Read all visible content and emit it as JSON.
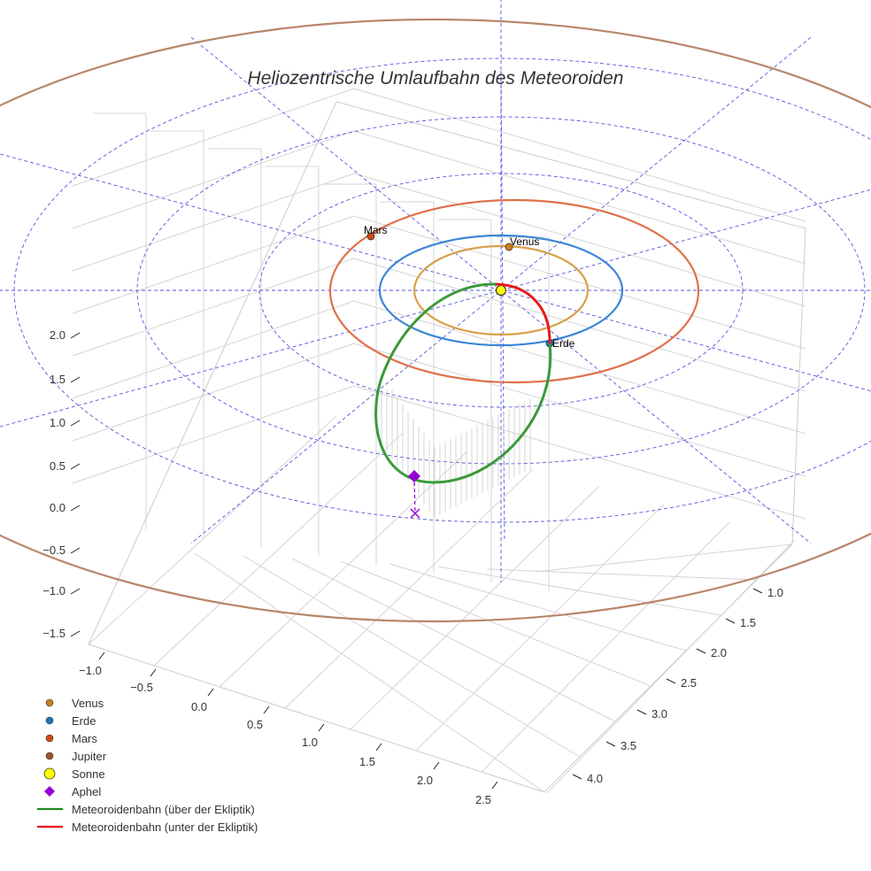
{
  "chart_data": {
    "type": "line3d",
    "title": "Heliozentrische Umlaufbahn des Meteoroiden",
    "x_ticks": [
      "−1.0",
      "−0.5",
      "0.0",
      "0.5",
      "1.0",
      "1.5",
      "2.0",
      "2.5"
    ],
    "y_ticks": [
      "1.0",
      "1.5",
      "2.0",
      "2.5",
      "3.0",
      "3.5",
      "4.0"
    ],
    "z_ticks": [
      "2.0",
      "1.5",
      "1.0",
      "0.5",
      "0.0",
      "−0.5",
      "−1.0",
      "−1.5"
    ],
    "planets": [
      {
        "name": "Venus",
        "color": "#c8801c",
        "orbit_color": "#d9a04c",
        "orbit_radius_au": 0.72
      },
      {
        "name": "Erde",
        "color": "#1f6fbf",
        "orbit_color": "#3a86d8",
        "orbit_radius_au": 1.0
      },
      {
        "name": "Mars",
        "color": "#d04a12",
        "orbit_color": "#e0704a",
        "orbit_radius_au": 1.52
      },
      {
        "name": "Jupiter",
        "color": "#a0522d",
        "orbit_color": "#b8866a",
        "orbit_radius_au": 5.2
      }
    ],
    "point_labels": [
      "Mars",
      "Venus",
      "Erde"
    ],
    "legend": [
      {
        "label": "Venus",
        "marker": "circle",
        "color": "#c8801c"
      },
      {
        "label": "Erde",
        "marker": "circle",
        "color": "#1f77b4"
      },
      {
        "label": "Mars",
        "marker": "circle",
        "color": "#d04a12"
      },
      {
        "label": "Jupiter",
        "marker": "circle",
        "color": "#a0522d"
      },
      {
        "label": "Sonne",
        "marker": "sun",
        "color": "#ffff00"
      },
      {
        "label": "Aphel",
        "marker": "diamond",
        "color": "#9400d3"
      },
      {
        "label": "Meteoroidenbahn (über der Ekliptik)",
        "marker": "line",
        "color": "#228b22"
      },
      {
        "label": "Meteoroidenbahn (unter der Ekliptik)",
        "marker": "line",
        "color": "#e8191a"
      }
    ],
    "legend_position": "lower-left",
    "grid": true
  }
}
